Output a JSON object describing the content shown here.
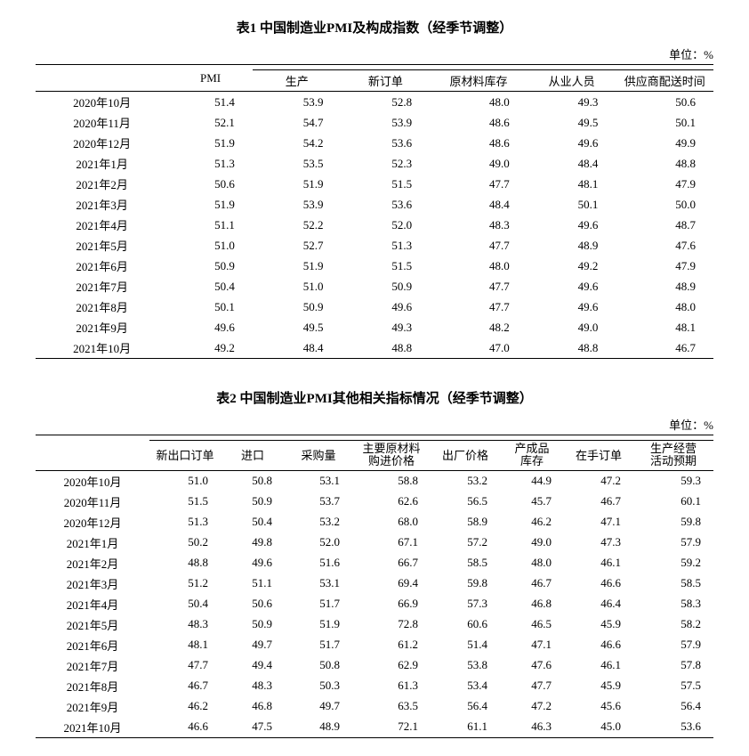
{
  "table1": {
    "title": "表1   中国制造业PMI及构成指数（经季节调整）",
    "unit": "单位：%",
    "headers": {
      "pmi": "PMI",
      "sub": [
        "生产",
        "新订单",
        "原材料库存",
        "从业人员",
        "供应商配送时间"
      ]
    },
    "rows": [
      {
        "date": "2020年10月",
        "pmi": "51.4",
        "v": [
          "53.9",
          "52.8",
          "48.0",
          "49.3",
          "50.6"
        ]
      },
      {
        "date": "2020年11月",
        "pmi": "52.1",
        "v": [
          "54.7",
          "53.9",
          "48.6",
          "49.5",
          "50.1"
        ]
      },
      {
        "date": "2020年12月",
        "pmi": "51.9",
        "v": [
          "54.2",
          "53.6",
          "48.6",
          "49.6",
          "49.9"
        ]
      },
      {
        "date": "2021年1月",
        "pmi": "51.3",
        "v": [
          "53.5",
          "52.3",
          "49.0",
          "48.4",
          "48.8"
        ]
      },
      {
        "date": "2021年2月",
        "pmi": "50.6",
        "v": [
          "51.9",
          "51.5",
          "47.7",
          "48.1",
          "47.9"
        ]
      },
      {
        "date": "2021年3月",
        "pmi": "51.9",
        "v": [
          "53.9",
          "53.6",
          "48.4",
          "50.1",
          "50.0"
        ]
      },
      {
        "date": "2021年4月",
        "pmi": "51.1",
        "v": [
          "52.2",
          "52.0",
          "48.3",
          "49.6",
          "48.7"
        ]
      },
      {
        "date": "2021年5月",
        "pmi": "51.0",
        "v": [
          "52.7",
          "51.3",
          "47.7",
          "48.9",
          "47.6"
        ]
      },
      {
        "date": "2021年6月",
        "pmi": "50.9",
        "v": [
          "51.9",
          "51.5",
          "48.0",
          "49.2",
          "47.9"
        ]
      },
      {
        "date": "2021年7月",
        "pmi": "50.4",
        "v": [
          "51.0",
          "50.9",
          "47.7",
          "49.6",
          "48.9"
        ]
      },
      {
        "date": "2021年8月",
        "pmi": "50.1",
        "v": [
          "50.9",
          "49.6",
          "47.7",
          "49.6",
          "48.0"
        ]
      },
      {
        "date": "2021年9月",
        "pmi": "49.6",
        "v": [
          "49.5",
          "49.3",
          "48.2",
          "49.0",
          "48.1"
        ]
      },
      {
        "date": "2021年10月",
        "pmi": "49.2",
        "v": [
          "48.4",
          "48.8",
          "47.0",
          "48.8",
          "46.7"
        ]
      }
    ],
    "col_widths": [
      "150",
      "95",
      "100",
      "100",
      "110",
      "100",
      "110"
    ]
  },
  "table2": {
    "title": "表2   中国制造业PMI其他相关指标情况（经季节调整）",
    "unit": "单位：%",
    "headers": [
      "新出口订单",
      "进口",
      "采购量",
      "主要原材料\n购进价格",
      "出厂价格",
      "产成品\n库存",
      "在手订单",
      "生产经营\n活动预期"
    ],
    "rows": [
      {
        "date": "2020年10月",
        "v": [
          "51.0",
          "50.8",
          "53.1",
          "58.8",
          "53.2",
          "44.9",
          "47.2",
          "59.3"
        ]
      },
      {
        "date": "2020年11月",
        "v": [
          "51.5",
          "50.9",
          "53.7",
          "62.6",
          "56.5",
          "45.7",
          "46.7",
          "60.1"
        ]
      },
      {
        "date": "2020年12月",
        "v": [
          "51.3",
          "50.4",
          "53.2",
          "68.0",
          "58.9",
          "46.2",
          "47.1",
          "59.8"
        ]
      },
      {
        "date": "2021年1月",
        "v": [
          "50.2",
          "49.8",
          "52.0",
          "67.1",
          "57.2",
          "49.0",
          "47.3",
          "57.9"
        ]
      },
      {
        "date": "2021年2月",
        "v": [
          "48.8",
          "49.6",
          "51.6",
          "66.7",
          "58.5",
          "48.0",
          "46.1",
          "59.2"
        ]
      },
      {
        "date": "2021年3月",
        "v": [
          "51.2",
          "51.1",
          "53.1",
          "69.4",
          "59.8",
          "46.7",
          "46.6",
          "58.5"
        ]
      },
      {
        "date": "2021年4月",
        "v": [
          "50.4",
          "50.6",
          "51.7",
          "66.9",
          "57.3",
          "46.8",
          "46.4",
          "58.3"
        ]
      },
      {
        "date": "2021年5月",
        "v": [
          "48.3",
          "50.9",
          "51.9",
          "72.8",
          "60.6",
          "46.5",
          "45.9",
          "58.2"
        ]
      },
      {
        "date": "2021年6月",
        "v": [
          "48.1",
          "49.7",
          "51.7",
          "61.2",
          "51.4",
          "47.1",
          "46.6",
          "57.9"
        ]
      },
      {
        "date": "2021年7月",
        "v": [
          "47.7",
          "49.4",
          "50.8",
          "62.9",
          "53.8",
          "47.6",
          "46.1",
          "57.8"
        ]
      },
      {
        "date": "2021年8月",
        "v": [
          "46.7",
          "48.3",
          "50.3",
          "61.3",
          "53.4",
          "47.7",
          "45.9",
          "57.5"
        ]
      },
      {
        "date": "2021年9月",
        "v": [
          "46.2",
          "46.8",
          "49.7",
          "63.5",
          "56.4",
          "47.2",
          "45.6",
          "56.4"
        ]
      },
      {
        "date": "2021年10月",
        "v": [
          "46.6",
          "47.5",
          "48.9",
          "72.1",
          "61.1",
          "46.3",
          "45.0",
          "53.6"
        ]
      }
    ],
    "col_widths": [
      "128",
      "80",
      "72",
      "76",
      "88",
      "78",
      "72",
      "78",
      "90"
    ]
  }
}
